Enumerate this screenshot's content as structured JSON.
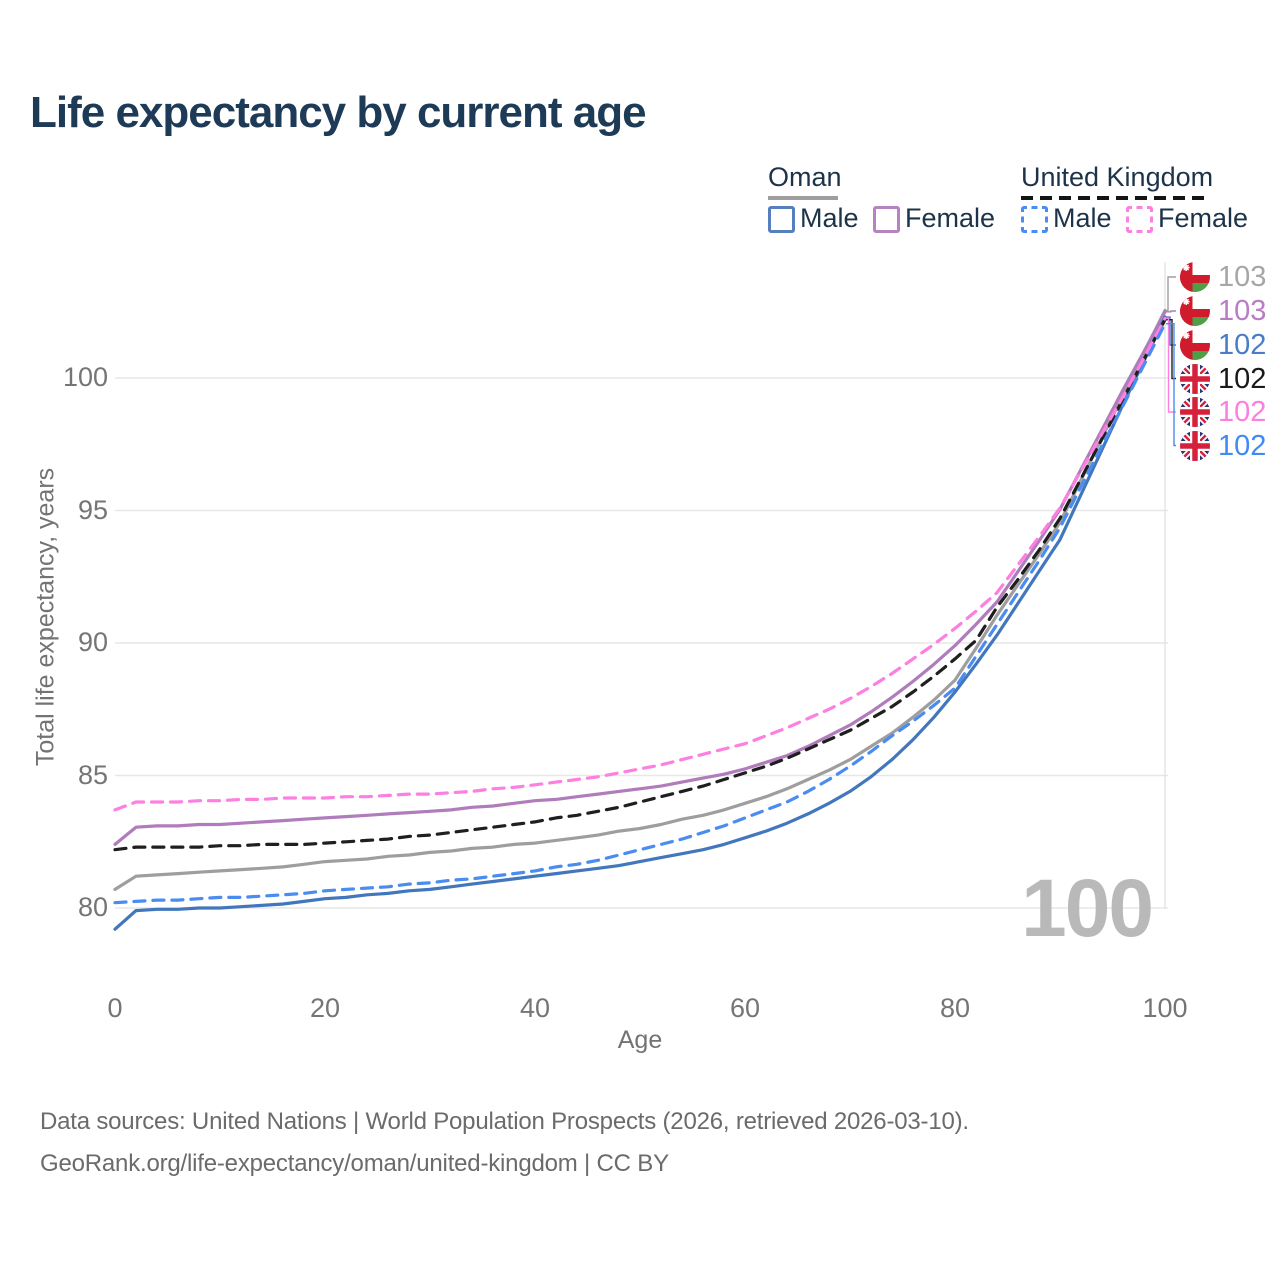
{
  "title": "Life expectancy by current age",
  "watermark": "100",
  "legend": {
    "groups": [
      {
        "label": "Oman",
        "line_color": "#9e9e9e",
        "dashed": false,
        "items": [
          {
            "label": "Male",
            "color": "#4277bd"
          },
          {
            "label": "Female",
            "color": "#b583bd"
          }
        ]
      },
      {
        "label": "United Kingdom",
        "line_color": "#141414",
        "dashed": true,
        "items": [
          {
            "label": "Male",
            "color": "#4a8cf0"
          },
          {
            "label": "Female",
            "color": "#fd7fe1"
          }
        ]
      }
    ]
  },
  "footer": {
    "line1": "Data sources: United Nations | World Population Prospects (2026, retrieved 2026-03-10).",
    "line2": "GeoRank.org/life-expectancy/oman/united-kingdom | CC BY"
  },
  "chart_data": {
    "type": "line",
    "title": "Life expectancy by current age",
    "xlabel": "Age",
    "ylabel": "Total life expectancy, years",
    "xlim": [
      0,
      100
    ],
    "ylim": [
      78.5,
      103.2
    ],
    "xticks": [
      0,
      20,
      40,
      60,
      80,
      100
    ],
    "yticks": [
      80,
      85,
      90,
      95,
      100
    ],
    "grid": "horizontal, plus right-edge vertical",
    "legend_position": "top-right",
    "x": [
      0,
      2,
      4,
      6,
      8,
      10,
      12,
      14,
      16,
      18,
      20,
      22,
      24,
      26,
      28,
      30,
      32,
      34,
      36,
      38,
      40,
      42,
      44,
      46,
      48,
      50,
      52,
      54,
      56,
      58,
      60,
      62,
      64,
      66,
      68,
      70,
      72,
      74,
      76,
      78,
      80,
      82,
      84,
      86,
      88,
      90,
      92,
      94,
      96,
      98,
      100
    ],
    "series": [
      {
        "name": "Oman — All",
        "country": "Oman",
        "sex": "all",
        "color": "#9e9e9e",
        "dashed": false,
        "flag": "oman",
        "end_label": "103",
        "label_color": "#a6a6a6",
        "values": [
          80.7,
          81.2,
          81.25,
          81.3,
          81.35,
          81.4,
          81.45,
          81.5,
          81.55,
          81.65,
          81.75,
          81.8,
          81.85,
          81.95,
          82.0,
          82.1,
          82.15,
          82.25,
          82.3,
          82.4,
          82.45,
          82.55,
          82.65,
          82.75,
          82.9,
          83.0,
          83.15,
          83.35,
          83.5,
          83.7,
          83.95,
          84.2,
          84.5,
          84.85,
          85.2,
          85.6,
          86.1,
          86.6,
          87.2,
          87.85,
          88.6,
          89.8,
          91.05,
          92.2,
          93.35,
          94.55,
          96.15,
          97.75,
          99.35,
          100.95,
          102.55
        ]
      },
      {
        "name": "Oman — Female",
        "country": "Oman",
        "sex": "female",
        "color": "#b07cbc",
        "dashed": false,
        "flag": "oman",
        "end_label": "103",
        "label_color": "#b77ec4",
        "values": [
          82.4,
          83.05,
          83.1,
          83.1,
          83.15,
          83.15,
          83.2,
          83.25,
          83.3,
          83.35,
          83.4,
          83.45,
          83.5,
          83.55,
          83.6,
          83.65,
          83.7,
          83.8,
          83.85,
          83.95,
          84.05,
          84.1,
          84.2,
          84.3,
          84.4,
          84.5,
          84.6,
          84.75,
          84.9,
          85.05,
          85.25,
          85.5,
          85.75,
          86.1,
          86.5,
          86.9,
          87.4,
          87.95,
          88.55,
          89.2,
          89.9,
          90.7,
          91.55,
          92.7,
          93.85,
          95.05,
          96.55,
          98.05,
          99.55,
          101.0,
          102.5
        ]
      },
      {
        "name": "Oman — Male",
        "country": "Oman",
        "sex": "male",
        "color": "#4277bd",
        "dashed": false,
        "flag": "oman",
        "end_label": "102",
        "label_color": "#4a7cc9",
        "values": [
          79.2,
          79.9,
          79.95,
          79.95,
          80.0,
          80.0,
          80.05,
          80.1,
          80.15,
          80.25,
          80.35,
          80.4,
          80.5,
          80.55,
          80.65,
          80.7,
          80.8,
          80.9,
          81.0,
          81.1,
          81.2,
          81.3,
          81.4,
          81.5,
          81.6,
          81.75,
          81.9,
          82.05,
          82.2,
          82.4,
          82.65,
          82.9,
          83.2,
          83.55,
          83.95,
          84.4,
          84.95,
          85.6,
          86.35,
          87.2,
          88.15,
          89.2,
          90.3,
          91.5,
          92.7,
          93.9,
          95.6,
          97.3,
          99.0,
          100.65,
          102.3
        ]
      },
      {
        "name": "United Kingdom — All",
        "country": "United Kingdom",
        "sex": "all",
        "color": "#1f1f1f",
        "dashed": true,
        "flag": "uk",
        "end_label": "102",
        "label_color": "#1a1a1a",
        "values": [
          82.2,
          82.3,
          82.3,
          82.3,
          82.3,
          82.35,
          82.35,
          82.4,
          82.4,
          82.4,
          82.45,
          82.5,
          82.55,
          82.6,
          82.7,
          82.75,
          82.85,
          82.95,
          83.05,
          83.15,
          83.25,
          83.4,
          83.5,
          83.65,
          83.8,
          84.0,
          84.2,
          84.4,
          84.6,
          84.85,
          85.1,
          85.35,
          85.65,
          86.0,
          86.35,
          86.7,
          87.15,
          87.6,
          88.15,
          88.75,
          89.4,
          90.1,
          91.35,
          92.4,
          93.5,
          94.7,
          96.2,
          97.7,
          99.2,
          100.7,
          102.2
        ]
      },
      {
        "name": "United Kingdom — Female",
        "country": "United Kingdom",
        "sex": "female",
        "color": "#fd7fe1",
        "dashed": true,
        "flag": "uk",
        "end_label": "102",
        "label_color": "#fc7fe0",
        "values": [
          83.7,
          84.0,
          84.0,
          84.0,
          84.05,
          84.05,
          84.1,
          84.1,
          84.15,
          84.15,
          84.15,
          84.2,
          84.2,
          84.25,
          84.3,
          84.3,
          84.35,
          84.4,
          84.5,
          84.55,
          84.65,
          84.75,
          84.85,
          84.95,
          85.1,
          85.25,
          85.4,
          85.6,
          85.8,
          86.0,
          86.2,
          86.5,
          86.8,
          87.15,
          87.5,
          87.9,
          88.35,
          88.85,
          89.4,
          89.95,
          90.55,
          91.2,
          91.9,
          92.95,
          94.0,
          95.1,
          96.5,
          97.9,
          99.3,
          100.75,
          102.25
        ]
      },
      {
        "name": "United Kingdom — Male",
        "country": "United Kingdom",
        "sex": "male",
        "color": "#4a8cf0",
        "dashed": true,
        "flag": "uk",
        "end_label": "102",
        "label_color": "#4189f5",
        "values": [
          80.2,
          80.25,
          80.3,
          80.3,
          80.35,
          80.4,
          80.4,
          80.45,
          80.5,
          80.55,
          80.65,
          80.7,
          80.75,
          80.8,
          80.9,
          80.95,
          81.05,
          81.1,
          81.2,
          81.3,
          81.4,
          81.55,
          81.65,
          81.8,
          82.0,
          82.2,
          82.4,
          82.6,
          82.85,
          83.1,
          83.4,
          83.7,
          84.0,
          84.4,
          84.85,
          85.35,
          85.9,
          86.5,
          87.05,
          87.65,
          88.3,
          89.5,
          90.7,
          91.9,
          93.1,
          94.35,
          95.9,
          97.45,
          98.95,
          100.5,
          102.05
        ]
      }
    ]
  },
  "flag_colors": {
    "oman_red": "#cf1b2b",
    "oman_green": "#4e9f45",
    "oman_white": "#ffffff",
    "uk_blue": "#283577",
    "uk_red": "#d6213a",
    "uk_white": "#ffffff"
  }
}
